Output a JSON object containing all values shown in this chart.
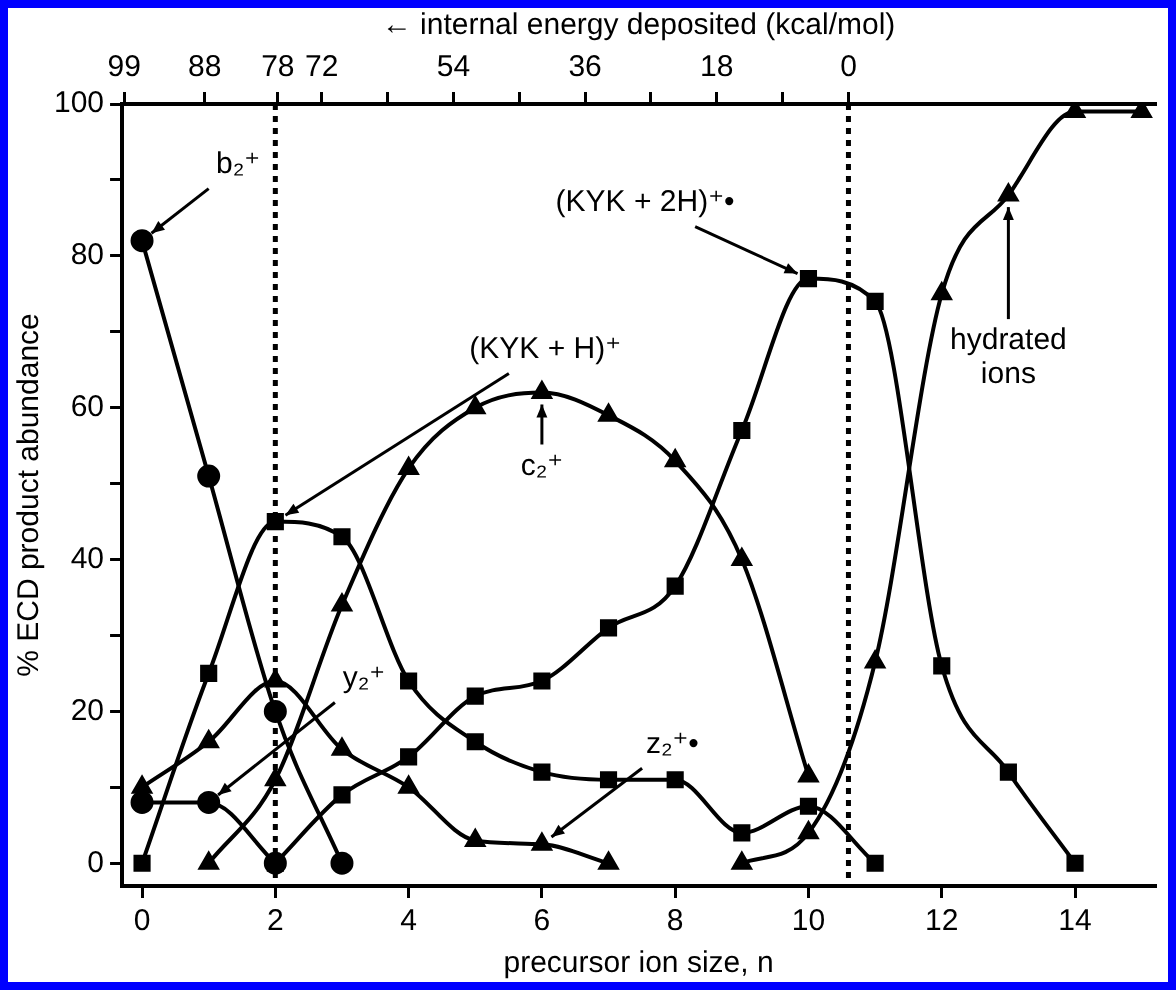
{
  "chart_data": {
    "type": "line",
    "xlabel": "precursor ion size, n",
    "ylabel": "% ECD product abundance",
    "x2label": "← internal energy deposited (kcal/mol)",
    "xlim": [
      -0.3,
      15.2
    ],
    "xticks": [
      0,
      2,
      4,
      6,
      8,
      10,
      12,
      14
    ],
    "x2lim": [
      99.3,
      -41.9
    ],
    "x2ticks": [
      99,
      88,
      78,
      72,
      {
        "value": 63,
        "label": null
      },
      54,
      {
        "value": 45,
        "label": null
      },
      36,
      {
        "value": 27,
        "label": null
      },
      18,
      {
        "value": 9,
        "label": null
      },
      0
    ],
    "ylim": [
      -3,
      100
    ],
    "yticks": [
      0,
      {
        "value": 10,
        "label": null
      },
      20,
      {
        "value": 30,
        "label": null
      },
      40,
      {
        "value": 50,
        "label": null
      },
      60,
      {
        "value": 70,
        "label": null
      },
      80,
      {
        "value": 90,
        "label": null
      },
      100
    ],
    "grid": false,
    "legend": false,
    "line_style": "solid",
    "ref_lines": [
      {
        "axis": "x",
        "value": 2,
        "line_style": "dotted"
      },
      {
        "axis": "x",
        "value": 10.6,
        "line_style": "dotted"
      }
    ],
    "series": [
      {
        "color": "#000000",
        "marker": "circle",
        "x": [
          0,
          1,
          2,
          3
        ],
        "values": [
          82,
          51,
          20,
          0
        ]
      },
      {
        "color": "#000000",
        "marker": "circle",
        "x": [
          0,
          1,
          2
        ],
        "values": [
          8,
          8,
          0
        ]
      },
      {
        "color": "#000000",
        "marker": "triangle",
        "x": [
          0,
          1,
          2,
          3,
          4,
          5,
          6,
          7
        ],
        "values": [
          10,
          16,
          24,
          15,
          10,
          3,
          2.5,
          0
        ]
      },
      {
        "color": "#000000",
        "marker": "square",
        "x": [
          0,
          1,
          2,
          3,
          4,
          5,
          6,
          7,
          8,
          9,
          10,
          11
        ],
        "values": [
          0,
          25,
          45,
          43,
          24,
          16,
          12,
          11,
          11,
          4,
          7.5,
          0
        ]
      },
      {
        "color": "#000000",
        "marker": "triangle",
        "x": [
          1,
          2,
          3,
          4,
          5,
          6,
          7,
          8,
          9,
          10
        ],
        "values": [
          0,
          11,
          34,
          52,
          60,
          62,
          59,
          53,
          40,
          11.5
        ]
      },
      {
        "color": "#000000",
        "marker": "square",
        "x": [
          2,
          3,
          4,
          5,
          6,
          7,
          8,
          9,
          10,
          11,
          12,
          13,
          14
        ],
        "values": [
          0,
          9,
          14,
          22,
          24,
          31,
          36.5,
          57,
          77,
          74,
          26,
          12,
          0
        ]
      },
      {
        "color": "#000000",
        "marker": "triangle",
        "x": [
          9,
          10,
          11,
          12,
          13,
          14,
          15
        ],
        "values": [
          0,
          4,
          26.5,
          75,
          88,
          99,
          99
        ]
      }
    ],
    "annotations": [
      {
        "text": "b₂⁺",
        "x": 0,
        "y": 82
      },
      {
        "text": "y₂⁺",
        "x": 1,
        "y": 8
      },
      {
        "text": "(KYK + H)⁺",
        "x": 2,
        "y": 45
      },
      {
        "text": "c₂⁺",
        "x": 6,
        "y": 62
      },
      {
        "text": "z₂⁺•",
        "x": 6,
        "y": 2.5
      },
      {
        "text": "(KYK + 2H)⁺•",
        "x": 10,
        "y": 77
      },
      {
        "text": "hydrated\nions",
        "x": 13,
        "y": 88
      }
    ]
  }
}
